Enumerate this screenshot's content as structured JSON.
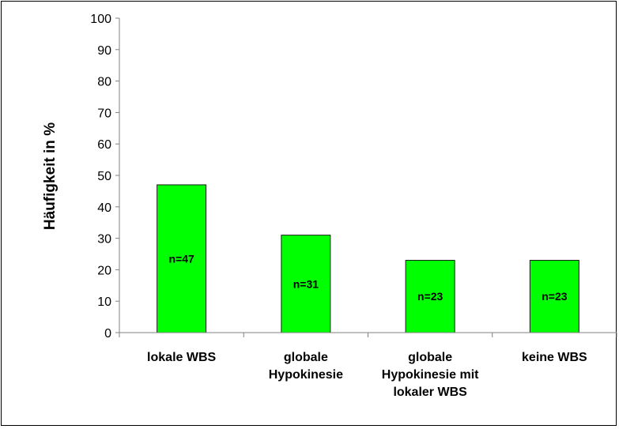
{
  "chart_data": {
    "type": "bar",
    "title": "",
    "xlabel": "",
    "ylabel": "Häufigkeit in %",
    "ylim": [
      0,
      100
    ],
    "yticks": [
      0,
      10,
      20,
      30,
      40,
      50,
      60,
      70,
      80,
      90,
      100
    ],
    "grid": false,
    "legend": "none",
    "bar_color": "#00ff00",
    "categories": [
      [
        "lokale WBS"
      ],
      [
        "globale",
        "Hypokinesie"
      ],
      [
        "globale",
        "Hypokinesie mit",
        "lokaler WBS"
      ],
      [
        "keine WBS"
      ]
    ],
    "values": [
      47,
      31,
      23,
      23
    ],
    "data_labels": [
      "n=47",
      "n=31",
      "n=23",
      "n=23"
    ]
  }
}
